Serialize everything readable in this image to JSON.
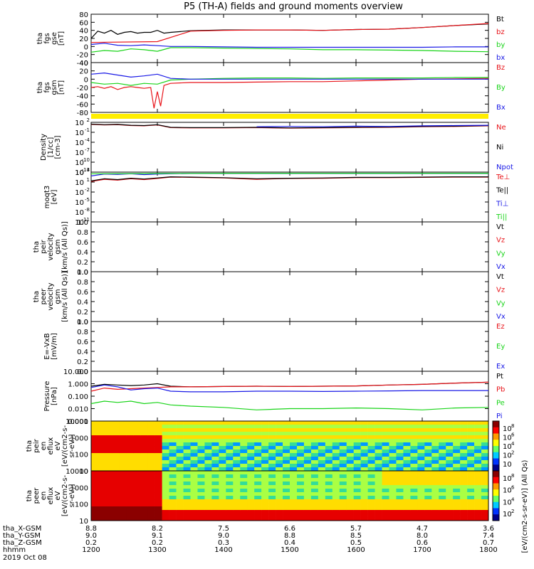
{
  "title": "P5 (TH-A) fields and ground moments overview",
  "colors": {
    "black": "#000000",
    "red": "#e8141a",
    "green": "#19d419",
    "blue": "#1919e6",
    "yellow": "#ffee00"
  },
  "chart_data": [
    {
      "type": "line",
      "id": "fgs_gse",
      "ylabel": [
        "tha",
        "fgs",
        "gse",
        "[nT]"
      ],
      "ylim": [
        -40,
        80
      ],
      "yticks": [
        "80",
        "60",
        "40",
        "20",
        "0",
        "-20",
        "-40"
      ],
      "series": [
        {
          "name": "Bt",
          "color": "black",
          "x": [
            1200,
            1210,
            1220,
            1230,
            1240,
            1250,
            1260,
            1270,
            1280,
            1290,
            1300,
            1310,
            1320,
            1350,
            1400,
            1450,
            1500,
            1550,
            1600,
            1650,
            1700,
            1750,
            1800
          ],
          "y": [
            20,
            38,
            33,
            40,
            30,
            35,
            37,
            33,
            35,
            35,
            40,
            33,
            35,
            39,
            41,
            41,
            41,
            40,
            42,
            43,
            47,
            52,
            56
          ]
        },
        {
          "name": "bz",
          "color": "red",
          "x": [
            1200,
            1300,
            1350,
            1400,
            1450,
            1500,
            1550,
            1600,
            1650,
            1700,
            1750,
            1800
          ],
          "y": [
            10,
            12,
            38,
            40,
            41,
            41,
            40,
            42,
            43,
            47,
            52,
            57
          ]
        },
        {
          "name": "by",
          "color": "green",
          "x": [
            1200,
            1220,
            1240,
            1260,
            1280,
            1300,
            1320,
            1350,
            1400,
            1450,
            1500,
            1550,
            1600,
            1650,
            1700,
            1750,
            1800
          ],
          "y": [
            -14,
            -10,
            -12,
            -6,
            -8,
            -12,
            -3,
            -3,
            -4,
            -5,
            -6,
            -8,
            -8,
            -9,
            -10,
            -12,
            -13
          ]
        },
        {
          "name": "bx",
          "color": "blue",
          "x": [
            1200,
            1220,
            1240,
            1260,
            1280,
            1300,
            1320,
            1350,
            1400,
            1450,
            1500,
            1550,
            1600,
            1650,
            1700,
            1750,
            1800
          ],
          "y": [
            5,
            8,
            3,
            2,
            4,
            2,
            0,
            0,
            -1,
            -2,
            -2,
            -2,
            -2,
            -2,
            -2,
            -1,
            -1
          ]
        }
      ]
    },
    {
      "type": "line",
      "id": "fgs_gsm",
      "ylabel": [
        "tha",
        "fgs",
        "gsm",
        "[nT]"
      ],
      "ylim": [
        -80,
        40
      ],
      "yticks": [
        "40",
        "20",
        "0",
        "-20",
        "-40",
        "-60",
        "-80"
      ],
      "series": [
        {
          "name": "Bz",
          "color": "red",
          "x": [
            1200,
            1210,
            1220,
            1230,
            1240,
            1250,
            1260,
            1270,
            1280,
            1290,
            1295,
            1300,
            1305,
            1310,
            1320,
            1350,
            1400,
            1450,
            1500,
            1550,
            1600,
            1650,
            1700,
            1750,
            1800
          ],
          "y": [
            -20,
            -18,
            -22,
            -18,
            -25,
            -20,
            -18,
            -20,
            -22,
            -20,
            -70,
            -30,
            -65,
            -15,
            -10,
            -8,
            -8,
            -7,
            -6,
            -6,
            -4,
            -2,
            0,
            1,
            2
          ]
        },
        {
          "name": "By",
          "color": "green",
          "x": [
            1200,
            1220,
            1240,
            1260,
            1280,
            1300,
            1320,
            1350,
            1400,
            1450,
            1500,
            1550,
            1600,
            1650,
            1700,
            1750,
            1800
          ],
          "y": [
            -8,
            -12,
            -10,
            -15,
            -10,
            -12,
            -2,
            0,
            2,
            3,
            3,
            2,
            3,
            3,
            3,
            4,
            4
          ]
        },
        {
          "name": "Bx",
          "color": "blue",
          "x": [
            1200,
            1220,
            1240,
            1260,
            1280,
            1300,
            1320,
            1350,
            1400,
            1450,
            1500,
            1550,
            1600,
            1650,
            1700,
            1750,
            1800
          ],
          "y": [
            12,
            15,
            10,
            5,
            8,
            12,
            2,
            0,
            0,
            0,
            0,
            0,
            0,
            0,
            0,
            0,
            0
          ]
        }
      ]
    },
    {
      "type": "line",
      "id": "density",
      "ylabel": [
        "Density",
        "[1/cc]",
        "[cm-3]"
      ],
      "ylim": [
        -15,
        2
      ],
      "ylog": true,
      "yticks": [
        "10",
        "10",
        "10",
        "10",
        "10",
        "10"
      ],
      "ytick_exponents": [
        "2",
        "-1",
        "-4",
        "-7",
        "-10",
        "-13"
      ],
      "series": [
        {
          "name": "Ne",
          "color": "red",
          "x": [
            1200,
            1220,
            1240,
            1260,
            1280,
            1300,
            1320,
            1350,
            1400,
            1450,
            1500,
            1550,
            1600,
            1650,
            1700,
            1750,
            1800
          ],
          "y": [
            1.3,
            1.1,
            1.2,
            0.9,
            0.8,
            1.1,
            0.2,
            0.1,
            0.1,
            0.2,
            0.0,
            0.1,
            0.2,
            0.3,
            0.5,
            0.6,
            0.8
          ]
        },
        {
          "name": "Ni",
          "color": "black",
          "x": [
            1200,
            1220,
            1240,
            1260,
            1280,
            1300,
            1320,
            1350,
            1400,
            1450,
            1500,
            1550,
            1600,
            1650,
            1700,
            1750,
            1800
          ],
          "y": [
            1.4,
            1.2,
            1.3,
            1.0,
            0.9,
            1.2,
            0.3,
            0.2,
            0.2,
            0.3,
            0.1,
            0.2,
            0.3,
            0.4,
            0.6,
            0.7,
            0.9
          ]
        },
        {
          "name": "Npot",
          "color": "blue",
          "x": [
            1450,
            1500,
            1550,
            1600,
            1650,
            1700,
            1750,
            1800
          ],
          "y": [
            0.5,
            0.6,
            0.5,
            0.7,
            0.6,
            0.8,
            0.9,
            1.0
          ]
        }
      ]
    },
    {
      "type": "line",
      "id": "temperature",
      "ylabel": [
        "moqt3",
        "[eV]"
      ],
      "ylim": [
        -13,
        5
      ],
      "ylog": true,
      "yticks": [
        "10",
        "10",
        "10",
        "10",
        "10",
        "10"
      ],
      "ytick_exponents": [
        "4",
        "1",
        "-2",
        "-5",
        "-8",
        "-11"
      ],
      "series": [
        {
          "name": "Te⊥",
          "color": "red",
          "x": [
            1200,
            1220,
            1240,
            1260,
            1280,
            1300,
            1320,
            1350,
            1400,
            1450,
            1500,
            1550,
            1600,
            1650,
            1700,
            1750,
            1800
          ],
          "y": [
            1.6,
            2.4,
            2.1,
            2.6,
            2.3,
            2.7,
            3.2,
            3.1,
            2.9,
            2.4,
            2.7,
            2.8,
            3.0,
            3.0,
            3.1,
            3.2,
            3.2
          ]
        },
        {
          "name": "Te||",
          "color": "black",
          "x": [
            1200,
            1220,
            1240,
            1260,
            1280,
            1300,
            1320,
            1350,
            1400,
            1450,
            1500,
            1550,
            1600,
            1650,
            1700,
            1750,
            1800
          ],
          "y": [
            1.8,
            2.6,
            2.3,
            2.8,
            2.5,
            2.9,
            3.3,
            3.2,
            3.0,
            2.6,
            2.8,
            2.9,
            3.1,
            3.1,
            3.2,
            3.3,
            3.3
          ]
        },
        {
          "name": "Ti⊥",
          "color": "blue",
          "x": [
            1200,
            1220,
            1240,
            1260,
            1280,
            1300,
            1320,
            1350,
            1400,
            1450,
            1500,
            1550,
            1600,
            1650,
            1700,
            1750,
            1800
          ],
          "y": [
            3.6,
            4.3,
            4.2,
            4.4,
            4.1,
            4.3,
            4.4,
            4.5,
            4.5,
            4.5,
            4.5,
            4.5,
            4.5,
            4.5,
            4.5,
            4.5,
            4.5
          ]
        },
        {
          "name": "Ti||",
          "color": "green",
          "x": [
            1200,
            1300,
            1400,
            1500,
            1600,
            1700,
            1800
          ],
          "y": [
            4.4,
            4.5,
            4.6,
            4.6,
            4.6,
            4.6,
            4.6
          ]
        }
      ]
    },
    {
      "type": "line",
      "id": "peir_velocity",
      "ylabel": [
        "tha",
        "peir",
        "velocity",
        "gsm",
        "[km/s (All Qs)]"
      ],
      "ylim": [
        0,
        1
      ],
      "yticks": [
        "1.0",
        "0.8",
        "0.6",
        "0.4",
        "0.2",
        "0.0"
      ],
      "series": [
        {
          "name": "Vt",
          "color": "black"
        },
        {
          "name": "Vz",
          "color": "red"
        },
        {
          "name": "Vy",
          "color": "green"
        },
        {
          "name": "Vx",
          "color": "blue"
        }
      ]
    },
    {
      "type": "line",
      "id": "peer_velocity",
      "ylabel": [
        "tha",
        "peer",
        "velocity",
        "gsm",
        "[km/s (All Qs)]"
      ],
      "ylim": [
        0,
        1
      ],
      "yticks": [
        "1.0",
        "0.8",
        "0.6",
        "0.4",
        "0.2",
        "0.0"
      ],
      "series": [
        {
          "name": "Vt",
          "color": "black"
        },
        {
          "name": "Vz",
          "color": "red"
        },
        {
          "name": "Vy",
          "color": "green"
        },
        {
          "name": "Vx",
          "color": "blue"
        }
      ]
    },
    {
      "type": "line",
      "id": "efield",
      "ylabel": [
        "E=-VxB",
        "[mV/m]"
      ],
      "ylim": [
        0,
        1
      ],
      "yticks": [
        "1.0",
        "0.8",
        "0.6",
        "0.4",
        "0.2",
        "0.0"
      ],
      "series": [
        {
          "name": "Ez",
          "color": "red"
        },
        {
          "name": "Ey",
          "color": "green"
        },
        {
          "name": "Ex",
          "color": "blue"
        }
      ]
    },
    {
      "type": "line",
      "id": "pressure",
      "ylabel": [
        "Pressure",
        "[nPa]"
      ],
      "ylim": [
        -3,
        1
      ],
      "ylog": true,
      "yticks": [
        "10.000",
        "1.000",
        "0.100",
        "0.010",
        "0.001"
      ],
      "series": [
        {
          "name": "Pt",
          "color": "black",
          "x": [
            1200,
            1220,
            1240,
            1260,
            1280,
            1300,
            1320,
            1350,
            1400,
            1450,
            1500,
            1550,
            1600,
            1650,
            1700,
            1750,
            1800
          ],
          "y": [
            -0.2,
            -0.05,
            -0.1,
            -0.15,
            -0.1,
            0.0,
            -0.2,
            -0.25,
            -0.22,
            -0.2,
            -0.22,
            -0.2,
            -0.18,
            -0.1,
            -0.05,
            0.05,
            0.12
          ]
        },
        {
          "name": "Pb",
          "color": "red",
          "x": [
            1200,
            1220,
            1240,
            1260,
            1280,
            1300,
            1320,
            1350,
            1400,
            1450,
            1500,
            1550,
            1600,
            1650,
            1700,
            1750,
            1800
          ],
          "y": [
            -0.6,
            -0.35,
            -0.45,
            -0.4,
            -0.35,
            -0.3,
            -0.25,
            -0.25,
            -0.22,
            -0.2,
            -0.22,
            -0.2,
            -0.18,
            -0.1,
            -0.05,
            0.05,
            0.12
          ]
        },
        {
          "name": "Pe",
          "color": "green",
          "x": [
            1200,
            1220,
            1240,
            1260,
            1280,
            1300,
            1320,
            1350,
            1400,
            1450,
            1500,
            1550,
            1600,
            1650,
            1700,
            1750,
            1800
          ],
          "y": [
            -1.6,
            -1.4,
            -1.5,
            -1.4,
            -1.6,
            -1.5,
            -1.7,
            -1.8,
            -1.9,
            -2.1,
            -2.0,
            -2.0,
            -1.95,
            -2.0,
            -2.1,
            -1.95,
            -1.9
          ]
        },
        {
          "name": "Pi",
          "color": "blue",
          "x": [
            1200,
            1220,
            1240,
            1260,
            1280,
            1300,
            1320,
            1350,
            1400,
            1450,
            1500,
            1550,
            1600,
            1650,
            1700,
            1750,
            1800
          ],
          "y": [
            -0.3,
            -0.1,
            -0.25,
            -0.5,
            -0.4,
            -0.35,
            -0.6,
            -0.65,
            -0.65,
            -0.6,
            -0.6,
            -0.62,
            -0.6,
            -0.58,
            -0.55,
            -0.55,
            -0.55
          ]
        }
      ]
    },
    {
      "type": "heatmap",
      "id": "peir_spec",
      "ylabel": [
        "tha",
        "peir",
        "en",
        "eflux",
        "eV",
        "[eV/(cm2-s-",
        "sr-eV)]"
      ],
      "yticks": [
        "10000",
        "1000",
        "100",
        "10"
      ],
      "ylog": true,
      "colorbar_ticks": [
        "10",
        "10",
        "10",
        "10",
        "10"
      ],
      "colorbar_exponents": [
        "8",
        "6",
        "4",
        "2",
        ""
      ]
    },
    {
      "type": "heatmap",
      "id": "peer_spec",
      "ylabel": [
        "tha",
        "peer",
        "en",
        "eflux",
        "eV",
        "[eV/(cm2-s-",
        "sr-eV)]"
      ],
      "yticks": [
        "10000",
        "1000",
        "100",
        "10"
      ],
      "ylog": true,
      "colorbar_ticks": [
        "10",
        "10",
        "10",
        "10"
      ],
      "colorbar_exponents": [
        "8",
        "6",
        "4",
        "2"
      ]
    }
  ],
  "colorbar_label": "[eV/(cm2-s-sr-eV)] (All Qs)",
  "x_axis": {
    "ticks_hhmm": [
      "1200",
      "1300",
      "1400",
      "1500",
      "1600",
      "1700",
      "1800"
    ],
    "rows": [
      {
        "label": "tha_X-GSM",
        "values": [
          "8.8",
          "8.2",
          "7.5",
          "6.6",
          "5.7",
          "4.7",
          "3.6"
        ]
      },
      {
        "label": "tha_Y-GSM",
        "values": [
          "9.0",
          "9.1",
          "9.0",
          "8.8",
          "8.5",
          "8.0",
          "7.4"
        ]
      },
      {
        "label": "tha_Z-GSM",
        "values": [
          "0.2",
          "0.2",
          "0.3",
          "0.4",
          "0.5",
          "0.6",
          "0.7"
        ]
      },
      {
        "label": "hhmm",
        "values": [
          "1200",
          "1300",
          "1400",
          "1500",
          "1600",
          "1700",
          "1800"
        ]
      }
    ],
    "date_label": "2019 Oct 08"
  }
}
